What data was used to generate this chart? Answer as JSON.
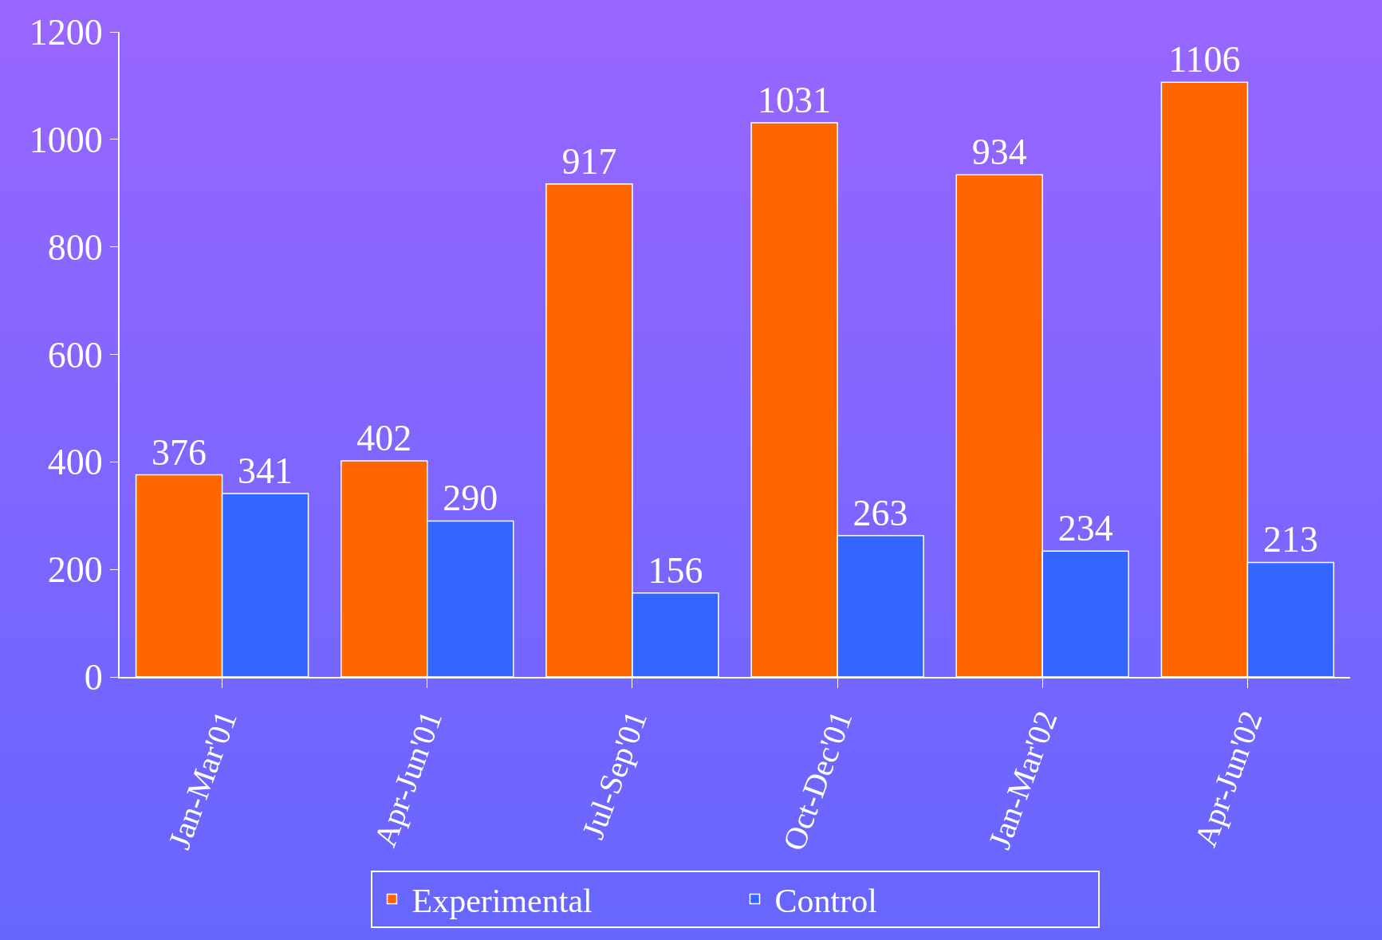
{
  "chart_data": {
    "type": "bar",
    "categories": [
      "Jan-Mar'01",
      "Apr-Jun'01",
      "Jul-Sep'01",
      "Oct-Dec'01",
      "Jan-Mar'02",
      "Apr-Jun'02"
    ],
    "series": [
      {
        "name": "Experimental",
        "color": "#ff6600",
        "values": [
          376,
          402,
          917,
          1031,
          934,
          1106
        ]
      },
      {
        "name": "Control",
        "color": "#3366ff",
        "values": [
          341,
          290,
          156,
          263,
          234,
          213
        ]
      }
    ],
    "ylim": [
      0,
      1200
    ],
    "yticks": [
      0,
      200,
      400,
      600,
      800,
      1000,
      1200
    ],
    "grid": false,
    "legend": "bottom",
    "data_labels": true
  }
}
